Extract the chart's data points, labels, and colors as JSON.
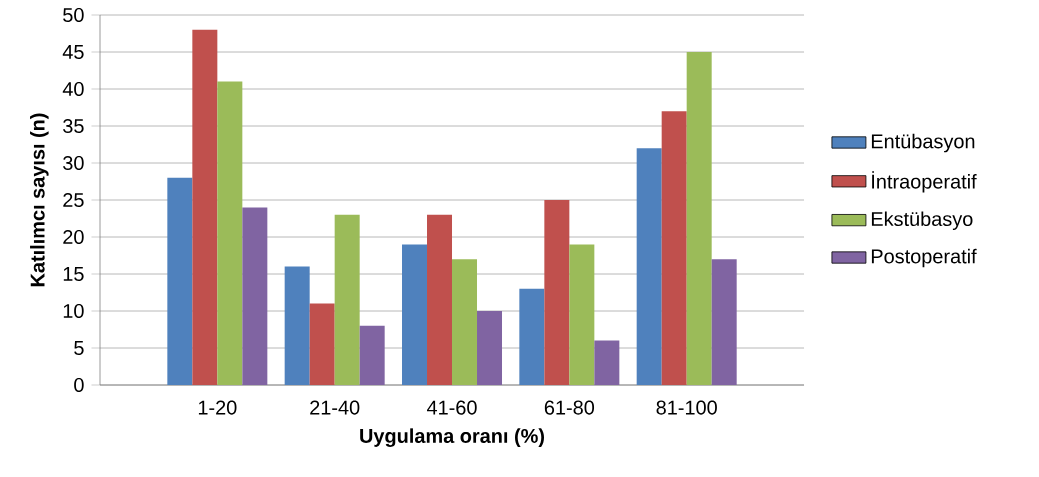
{
  "chart_data": {
    "type": "bar",
    "xlabel": "Uygulama oranı (%)",
    "ylabel": "Katılımcı sayısı (n)",
    "categories": [
      "1-20",
      "21-40",
      "41-60",
      "61-80",
      "81-100"
    ],
    "series": [
      {
        "name": "Entübasyon",
        "color": "#4f81bd",
        "values": [
          28,
          16,
          19,
          13,
          32
        ]
      },
      {
        "name": "İntraoperatif",
        "color": "#c0504d",
        "values": [
          48,
          11,
          23,
          25,
          37
        ]
      },
      {
        "name": "Ekstübasyo",
        "color": "#9bbb59",
        "values": [
          41,
          23,
          17,
          19,
          45
        ]
      },
      {
        "name": "Postoperatif",
        "color": "#8064a2",
        "values": [
          24,
          8,
          10,
          6,
          17
        ]
      }
    ],
    "ylim": [
      0,
      50
    ],
    "yticks": [
      0,
      5,
      10,
      15,
      20,
      25,
      30,
      35,
      40,
      45,
      50
    ],
    "grid": "y",
    "legend": "right"
  }
}
